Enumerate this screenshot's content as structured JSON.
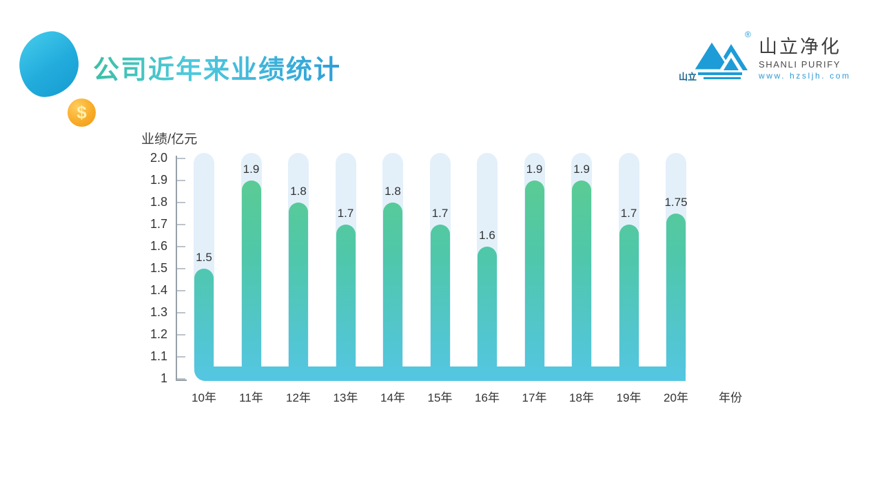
{
  "slide": {
    "title": "公司近年来业绩统计"
  },
  "decor": {
    "coin_symbol": "$"
  },
  "logo": {
    "mark_text": "山立",
    "registered": "®",
    "brand_cn": "山立净化",
    "brand_en": "SHANLI PURIFY",
    "website": "www. hzsljh. com",
    "brand_blue": "#1E9CD7",
    "mark_text_color": "#14618F"
  },
  "chart_data": {
    "type": "bar",
    "title": "公司近年来业绩统计",
    "ylabel": "业绩/亿元",
    "xlabel": "年份",
    "categories": [
      "10年",
      "11年",
      "12年",
      "13年",
      "14年",
      "15年",
      "16年",
      "17年",
      "18年",
      "19年",
      "20年"
    ],
    "values": [
      1.5,
      1.9,
      1.8,
      1.7,
      1.8,
      1.7,
      1.6,
      1.9,
      1.9,
      1.7,
      1.75
    ],
    "value_labels": [
      "1.5",
      "1.9",
      "1.8",
      "1.7",
      "1.8",
      "1.7",
      "1.6",
      "1.9",
      "1.9",
      "1.7",
      "1.75"
    ],
    "yticks": [
      "2.0",
      "1.9",
      "1.8",
      "1.7",
      "1.6",
      "1.5",
      "1.4",
      "1.3",
      "1.2",
      "1.1",
      "1"
    ],
    "ylim": [
      1,
      2
    ],
    "grid": false,
    "legend": false,
    "bar_gradient_top": "#5FCD8D",
    "bar_gradient_mid": "#4FC7A9",
    "bar_gradient_bottom": "#54C6E3",
    "track_color": "#E3F0FA",
    "label_color": "#333333"
  }
}
